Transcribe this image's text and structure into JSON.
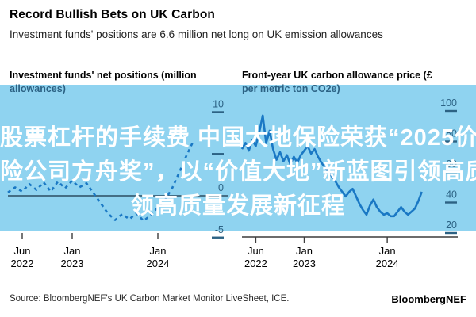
{
  "header": {
    "title": "Record Bullish Bets on UK Carbon",
    "subtitle": "Investment funds' positions are 6.6 million net long on UK emission allowances"
  },
  "overlay": {
    "line1": "股票杠杆的手续费 中国大地保险荣获“2025价",
    "line2": "险公司方舟奖”，以“价值大地”新蓝图引领高质量发",
    "line3": "领高质量发展新征程"
  },
  "source": {
    "text": "Source: BloombergNEF's UK Carbon Market Monitor LiveSheet, ICE."
  },
  "logo": {
    "text": "BloombergNEF"
  },
  "palette": {
    "band": "#8fd3f0",
    "line": "#1a78c4",
    "inband_text": "#2c6284",
    "tick": "#2c6284",
    "zero_line": "#3a6076",
    "axis": "#3c3c3c",
    "black_text": "#000000"
  },
  "chart_data": [
    {
      "type": "line",
      "style": "dashed",
      "title": [
        "Investment funds' net positions (million",
        "allowances)"
      ],
      "xlabel": "",
      "ylabel": "million allowances",
      "x_unit": "months since Apr 2022",
      "x_start": 0,
      "x_step": 1,
      "xlim": [
        0,
        31
      ],
      "ylim": [
        -5,
        10
      ],
      "latest_value": 6.6,
      "values": [
        0.4,
        1.0,
        0.5,
        1.4,
        0.7,
        1.6,
        0.5,
        1.7,
        0.9,
        1.8,
        1.0,
        1.5,
        0.3,
        -0.9,
        -2.1,
        -2.9,
        -2.2,
        -2.8,
        -2.1,
        -3.0,
        -2.3,
        -1.4,
        -0.5,
        0.9,
        2.8,
        4.8,
        6.6
      ],
      "yticks": [
        {
          "v": 10,
          "label": "10",
          "dash": true
        },
        {
          "v": 5,
          "label": "",
          "dash": true
        },
        {
          "v": 0,
          "label": "0",
          "dash": false
        },
        {
          "v": -5,
          "label": "-5",
          "dash": true
        }
      ],
      "xticks": [
        {
          "m": 2,
          "l1": "Jun",
          "l2": "2022"
        },
        {
          "m": 9,
          "l1": "Jan",
          "l2": "2023"
        },
        {
          "m": 21,
          "l1": "Jan",
          "l2": "2024"
        }
      ]
    },
    {
      "type": "line",
      "style": "solid",
      "title": [
        "Front-year UK carbon allowance price (£",
        "per metric ton CO2e)"
      ],
      "xlabel": "",
      "ylabel": "£ per metric ton CO2e",
      "x_unit": "months since Apr 2022",
      "x_start": 0,
      "x_step": 0.5,
      "xlim": [
        0,
        31
      ],
      "ylim": [
        20,
        100
      ],
      "peak_value": 97,
      "values": [
        75,
        79,
        74,
        81,
        77,
        86,
        97,
        79,
        87,
        75,
        68,
        73,
        67,
        71,
        65,
        70,
        66,
        71,
        74,
        77,
        72,
        75,
        70,
        66,
        63,
        60,
        57,
        54,
        50,
        47,
        44,
        47,
        49,
        44,
        39,
        35,
        32,
        38,
        42,
        37,
        34,
        32,
        33,
        31,
        31,
        34,
        37,
        34,
        32,
        34,
        36,
        41,
        47
      ],
      "yticks": [
        {
          "v": 100,
          "label": "100",
          "dash": true
        },
        {
          "v": 80,
          "label": "80",
          "dash": true
        },
        {
          "v": 60,
          "label": "60",
          "dash": true
        },
        {
          "v": 40,
          "label": "40",
          "dash": true
        },
        {
          "v": 20,
          "label": "20",
          "dash": true
        }
      ],
      "xticks": [
        {
          "m": 2,
          "l1": "Jun",
          "l2": "2022"
        },
        {
          "m": 9,
          "l1": "Jan",
          "l2": "2023"
        },
        {
          "m": 21,
          "l1": "Jan",
          "l2": "2024"
        }
      ]
    }
  ]
}
